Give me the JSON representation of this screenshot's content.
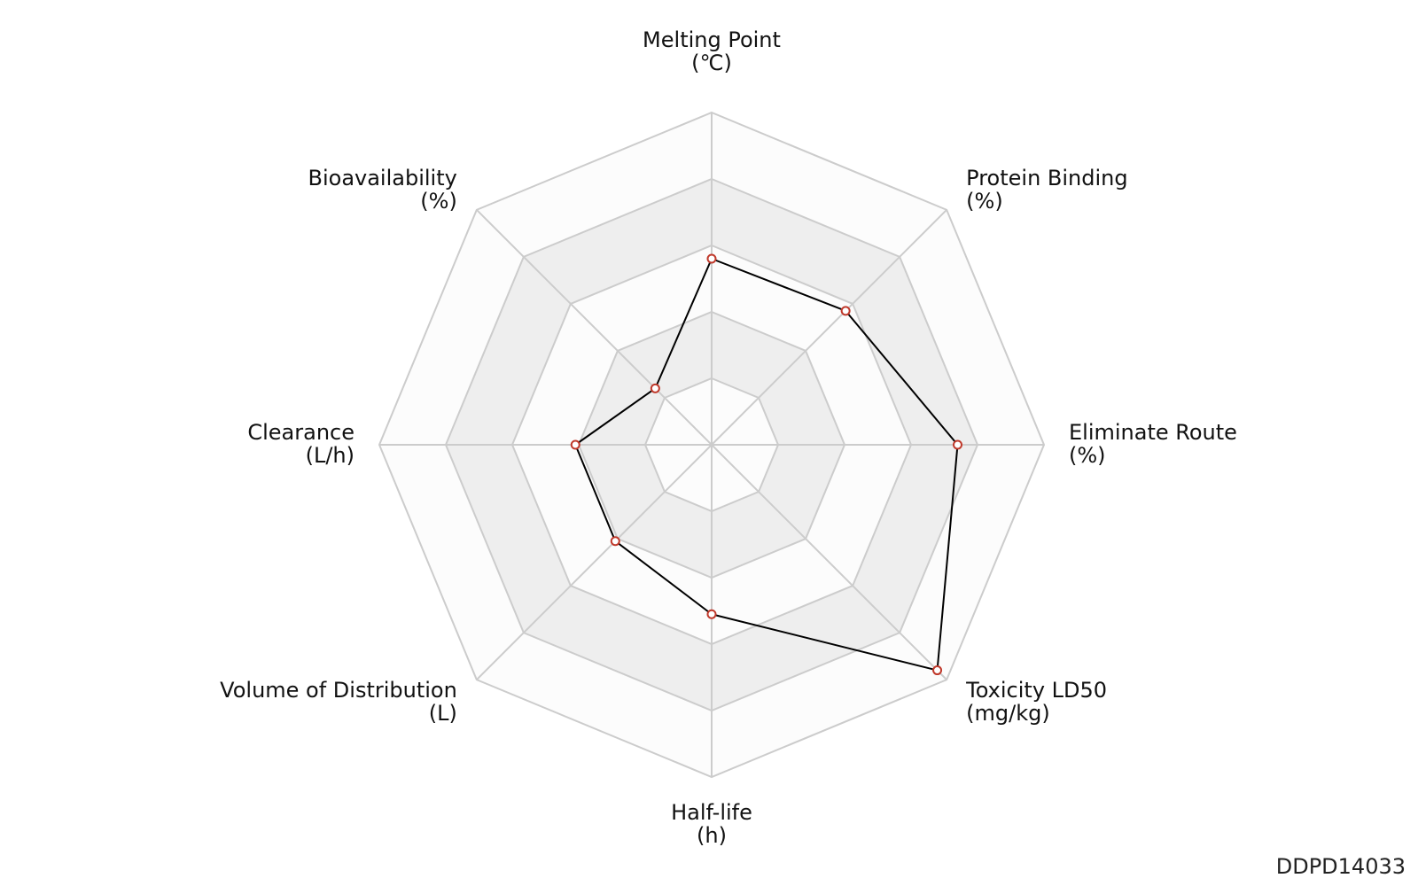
{
  "chart_data": {
    "type": "radar",
    "title": "",
    "axes": [
      {
        "label": "Melting Point",
        "unit": "(℃)"
      },
      {
        "label": "Protein Binding",
        "unit": "(%)"
      },
      {
        "label": "Eliminate Route",
        "unit": "(%)"
      },
      {
        "label": "Toxicity LD50",
        "unit": "(mg/kg)"
      },
      {
        "label": "Half-life",
        "unit": "(h)"
      },
      {
        "label": "Volume of Distribution",
        "unit": "(L)"
      },
      {
        "label": "Clearance",
        "unit": "(L/h)"
      },
      {
        "label": "Bioavailability",
        "unit": "(%)"
      }
    ],
    "rings": 5,
    "tick_labels_shown": false,
    "grid": true,
    "series": [
      {
        "values": [
          0.56,
          0.57,
          0.74,
          0.96,
          0.51,
          0.41,
          0.41,
          0.24
        ],
        "line_color": "#000000",
        "marker_edge_color": "#c0392b",
        "marker_face_color": "#ffffff"
      }
    ],
    "grid_band_colors": [
      "#ffffff",
      "#eeeeee"
    ],
    "grid_line_color": "#cccccc"
  },
  "figure_id": "DDPD14033"
}
